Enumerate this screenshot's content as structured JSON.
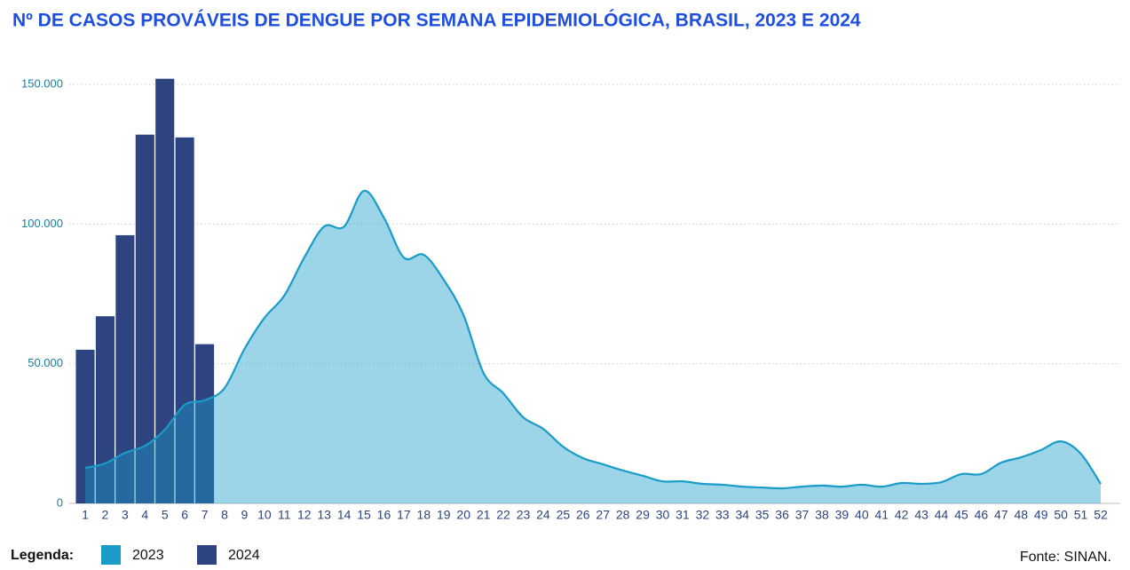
{
  "chart_data": {
    "type": "combo",
    "title": "Nº DE CASOS PROVÁVEIS DE DENGUE POR SEMANA EPIDEMIOLÓGICA, BRASIL, 2023 E 2024",
    "categories": [
      "1",
      "2",
      "3",
      "4",
      "5",
      "6",
      "7",
      "8",
      "9",
      "10",
      "11",
      "12",
      "13",
      "14",
      "15",
      "16",
      "17",
      "18",
      "19",
      "20",
      "21",
      "22",
      "23",
      "24",
      "25",
      "26",
      "27",
      "28",
      "29",
      "30",
      "31",
      "32",
      "33",
      "34",
      "35",
      "36",
      "37",
      "38",
      "39",
      "40",
      "41",
      "42",
      "43",
      "44",
      "45",
      "46",
      "47",
      "48",
      "49",
      "50",
      "51",
      "52"
    ],
    "series": [
      {
        "name": "2023",
        "type": "area",
        "color": "#1a9cc9",
        "values": [
          12700,
          14300,
          18100,
          20600,
          26400,
          35300,
          36900,
          41300,
          55300,
          66400,
          74400,
          88000,
          99100,
          99100,
          111900,
          102300,
          88000,
          89000,
          80100,
          67400,
          46700,
          39400,
          30800,
          26700,
          20300,
          16200,
          14000,
          11800,
          9900,
          7900,
          7900,
          7000,
          6700,
          6000,
          5700,
          5400,
          6000,
          6400,
          6000,
          6700,
          6000,
          7300,
          7000,
          7600,
          10500,
          10500,
          14600,
          16500,
          19100,
          22200,
          17800,
          7000
        ]
      },
      {
        "name": "2024",
        "type": "bar",
        "color": "#2e4480",
        "values": [
          55000,
          67000,
          96000,
          132000,
          152000,
          131000,
          57000,
          null,
          null,
          null,
          null,
          null,
          null,
          null,
          null,
          null,
          null,
          null,
          null,
          null,
          null,
          null,
          null,
          null,
          null,
          null,
          null,
          null,
          null,
          null,
          null,
          null,
          null,
          null,
          null,
          null,
          null,
          null,
          null,
          null,
          null,
          null,
          null,
          null,
          null,
          null,
          null,
          null,
          null,
          null,
          null,
          null
        ]
      }
    ],
    "ylim": [
      0,
      150000
    ],
    "yticks": [
      0,
      {
        "value": 50000,
        "label": "50.000"
      },
      {
        "value": 100000,
        "label": "100.000"
      },
      {
        "value": 150000,
        "label": "150.000"
      }
    ],
    "grid": true,
    "legend_title": "Legenda:",
    "source": "Fonte: SINAN."
  }
}
